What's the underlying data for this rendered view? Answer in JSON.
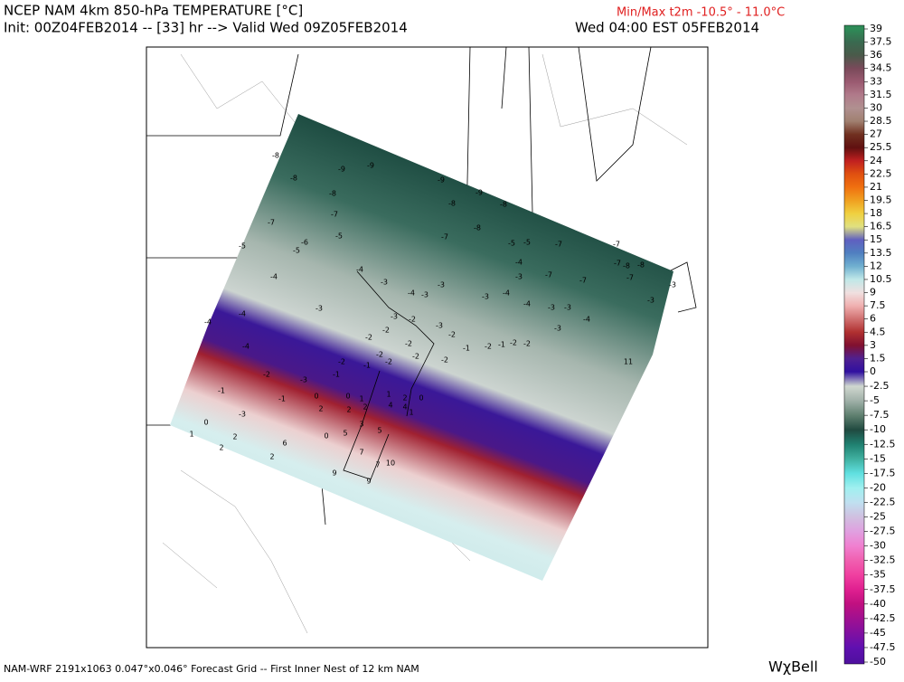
{
  "header": {
    "title": "NCEP NAM 4km 850-hPa TEMPERATURE [°C]",
    "init_line": "Init: 00Z04FEB2014 -- [33] hr --> Valid Wed 09Z05FEB2014",
    "valid_local": "Wed 04:00 EST 05FEB2014",
    "minmax": "Min/Max t2m -10.5° - 11.0°C"
  },
  "footer": {
    "grid_info": "NAM-WRF 2191x1063 0.047°x0.046° Forecast Grid -- First Inner Nest of 12 km NAM",
    "brand": "WχBell"
  },
  "colorbar": {
    "ticks": [
      39,
      37.5,
      36,
      34.5,
      33,
      31.5,
      30,
      28.5,
      27,
      25.5,
      24,
      22.5,
      21,
      19.5,
      18,
      16.5,
      15,
      13.5,
      12,
      10.5,
      9,
      7.5,
      6,
      4.5,
      3,
      1.5,
      0,
      -2.5,
      -5,
      -7.5,
      -10,
      -12.5,
      -15,
      -17.5,
      -20,
      -22.5,
      -25,
      -27.5,
      -30,
      -32.5,
      -35,
      -37.5,
      -40,
      -42.5,
      -45,
      -47.5,
      -50
    ],
    "colors": [
      "#2e8b57",
      "#3a6a50",
      "#4a5a4a",
      "#7a4a5a",
      "#9a5a70",
      "#b07a8a",
      "#b09090",
      "#a08070",
      "#703020",
      "#601010",
      "#c02020",
      "#e05010",
      "#f07010",
      "#f0a020",
      "#f0d040",
      "#e0e080",
      "#6060c0",
      "#5080c0",
      "#70b0d0",
      "#c0e8e8",
      "#f0e0e0",
      "#f0b0b0",
      "#d07070",
      "#b03030",
      "#801030",
      "#502090",
      "#3010a0",
      "#d0d8d0",
      "#a0b0a8",
      "#608070",
      "#204a40",
      "#208070",
      "#40b0a0",
      "#60e0e0",
      "#a0f0f0",
      "#c0e0f0",
      "#d0c0e0",
      "#e0a0e0",
      "#f080d0",
      "#f060b0",
      "#f040a0",
      "#e02090",
      "#c01080",
      "#a01090",
      "#8010a0",
      "#6010b0",
      "#5010a0"
    ]
  },
  "map_labels": [
    "-8",
    "-9",
    "-8",
    "-9",
    "-8",
    "-9",
    "-9",
    "-8",
    "-8",
    "-7",
    "-7",
    "-8",
    "-6",
    "-5",
    "-5",
    "-5",
    "-7",
    "-5",
    "-5",
    "-7",
    "-7",
    "-4",
    "-4",
    "-4",
    "-7",
    "-8",
    "-8",
    "-3",
    "-7",
    "-3",
    "-3",
    "-7",
    "-7",
    "-3",
    "-4",
    "-4",
    "-3",
    "-4",
    "-3",
    "-3",
    "-4",
    "-4",
    "-3",
    "-3",
    "-3",
    "-4",
    "-3",
    "-2",
    "-2",
    "-2",
    "-3",
    "-4",
    "-2",
    "-2",
    "-2",
    "-3",
    "-2",
    "-1",
    "-2",
    "-1",
    "-2",
    "-2",
    "-2",
    "-3",
    "-1",
    "-1",
    "-2",
    "-2",
    "-2",
    "-1",
    "-1",
    "0",
    "0",
    "1",
    "1",
    "2",
    "0",
    "-3",
    "0",
    "1",
    "2",
    "2",
    "2",
    "2",
    "4",
    "3",
    "5",
    "4",
    "1",
    "0",
    "5",
    "6",
    "2",
    "2",
    "7",
    "7",
    "10",
    "9",
    "9",
    "11"
  ]
}
